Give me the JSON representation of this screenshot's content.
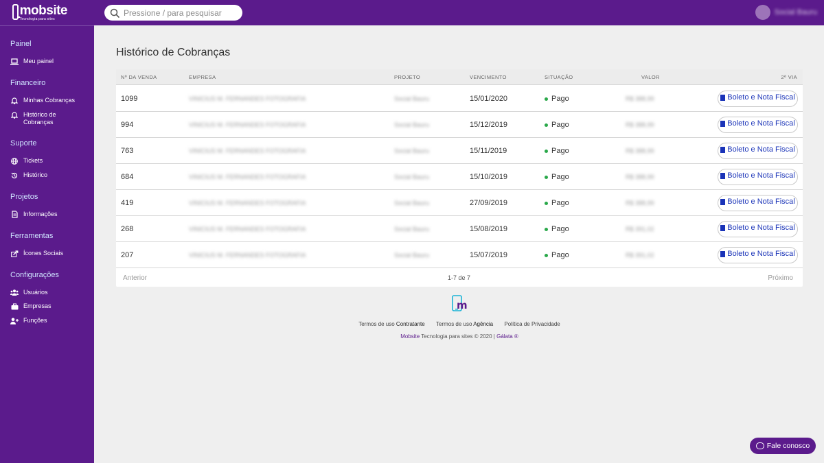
{
  "brand": {
    "logo_text": "mobsite",
    "logo_tagline": "Tecnologia para sites"
  },
  "search": {
    "placeholder": "Pressione / para pesquisar"
  },
  "user": {
    "name": "Social Bauru"
  },
  "sidebar": {
    "sections": [
      {
        "title": "Painel",
        "items": [
          {
            "label": "Meu painel",
            "icon": "laptop-icon"
          }
        ]
      },
      {
        "title": "Financeiro",
        "items": [
          {
            "label": "Minhas Cobranças",
            "icon": "bell-icon"
          },
          {
            "label": "Histórico de Cobranças",
            "icon": "bell-icon"
          }
        ]
      },
      {
        "title": "Suporte",
        "items": [
          {
            "label": "Tickets",
            "icon": "globe-icon"
          },
          {
            "label": "Histórico",
            "icon": "history-icon"
          }
        ]
      },
      {
        "title": "Projetos",
        "items": [
          {
            "label": "Informações",
            "icon": "file-icon"
          }
        ]
      },
      {
        "title": "Ferramentas",
        "items": [
          {
            "label": "Ícones Sociais",
            "icon": "share-icon"
          }
        ]
      },
      {
        "title": "Configurações",
        "items": [
          {
            "label": "Usuários",
            "icon": "users-icon"
          },
          {
            "label": "Empresas",
            "icon": "briefcase-icon"
          },
          {
            "label": "Funções",
            "icon": "user-plus-icon"
          }
        ]
      }
    ]
  },
  "page": {
    "title": "Histórico de Cobranças"
  },
  "table": {
    "headers": [
      "Nº DA VENDA",
      "EMPRESA",
      "PROJETO",
      "VENCIMENTO",
      "SITUAÇÃO",
      "VALOR",
      "2ª VIA"
    ],
    "rows": [
      {
        "venda": "1099",
        "empresa": "VINICIUS M. FERNANDES FOTOGRAFIA",
        "projeto": "Social Bauru",
        "vencimento": "15/01/2020",
        "situacao": "Pago",
        "valor": "R$ 388,99",
        "action": "Boleto e Nota Fiscal"
      },
      {
        "venda": "994",
        "empresa": "VINICIUS M. FERNANDES FOTOGRAFIA",
        "projeto": "Social Bauru",
        "vencimento": "15/12/2019",
        "situacao": "Pago",
        "valor": "R$ 388,99",
        "action": "Boleto e Nota Fiscal"
      },
      {
        "venda": "763",
        "empresa": "VINICIUS M. FERNANDES FOTOGRAFIA",
        "projeto": "Social Bauru",
        "vencimento": "15/11/2019",
        "situacao": "Pago",
        "valor": "R$ 388,99",
        "action": "Boleto e Nota Fiscal"
      },
      {
        "venda": "684",
        "empresa": "VINICIUS M. FERNANDES FOTOGRAFIA",
        "projeto": "Social Bauru",
        "vencimento": "15/10/2019",
        "situacao": "Pago",
        "valor": "R$ 388,99",
        "action": "Boleto e Nota Fiscal"
      },
      {
        "venda": "419",
        "empresa": "VINICIUS M. FERNANDES FOTOGRAFIA",
        "projeto": "Social Bauru",
        "vencimento": "27/09/2019",
        "situacao": "Pago",
        "valor": "R$ 388,99",
        "action": "Boleto e Nota Fiscal"
      },
      {
        "venda": "268",
        "empresa": "VINICIUS M. FERNANDES FOTOGRAFIA",
        "projeto": "Social Bauru",
        "vencimento": "15/08/2019",
        "situacao": "Pago",
        "valor": "R$ 391,02",
        "action": "Boleto e Nota Fiscal"
      },
      {
        "venda": "207",
        "empresa": "VINICIUS M. FERNANDES FOTOGRAFIA",
        "projeto": "Social Bauru",
        "vencimento": "15/07/2019",
        "situacao": "Pago",
        "valor": "R$ 391,02",
        "action": "Boleto e Nota Fiscal"
      }
    ]
  },
  "pagination": {
    "prev": "Anterior",
    "count": "1-7 de 7",
    "next": "Próximo"
  },
  "footer": {
    "link1_prefix": "Termos de uso",
    "link1_bold": "Contratante",
    "link2_prefix": "Termos de uso",
    "link2_bold": "Agência",
    "link3": "Política de Privacidade",
    "copy_brand": "Mobsite",
    "copy_text": "Tecnologia para sites © 2020 |",
    "copy_partner": "Gálata ®"
  },
  "chat": {
    "label": "Fale conosco"
  },
  "colors": {
    "brand_purple": "#5b1b8c",
    "link_blue": "#1a33b8",
    "status_green": "#2aa84a",
    "section_title": "#cfe3ff"
  }
}
